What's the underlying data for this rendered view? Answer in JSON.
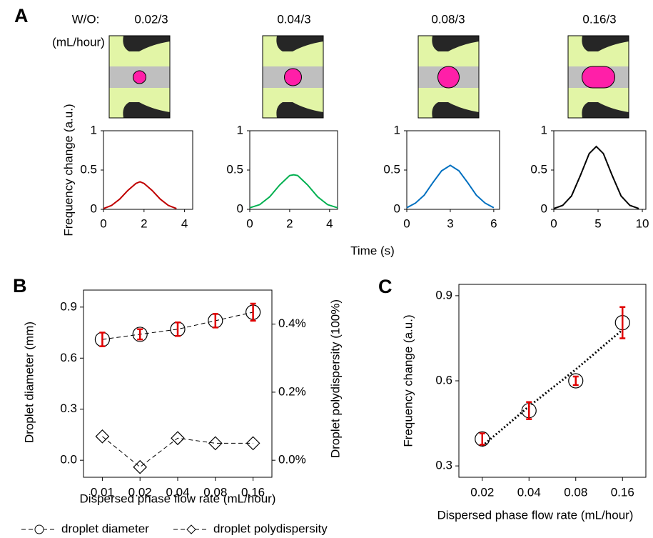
{
  "figure": {
    "panels": [
      "A",
      "B",
      "C"
    ],
    "panel_a": {
      "flow_label": "W/O:",
      "flow_unit": "(mL/hour)",
      "y_label": "Frequency change (a.u.)",
      "x_label": "Time (s)"
    }
  },
  "chart_data": [
    {
      "type": "line",
      "title": "0.02/3",
      "x": [
        0,
        0.4,
        0.8,
        1.2,
        1.6,
        1.8,
        2.0,
        2.4,
        2.8,
        3.2,
        3.6
      ],
      "series": [
        {
          "color": "#c00000",
          "values": [
            0.01,
            0.05,
            0.13,
            0.24,
            0.33,
            0.35,
            0.33,
            0.24,
            0.13,
            0.05,
            0.01
          ]
        }
      ],
      "xlim": [
        0,
        4.4
      ],
      "xticks": [
        0,
        2,
        4
      ],
      "ylim": [
        0,
        1
      ],
      "yticks": [
        0,
        0.5,
        1
      ]
    },
    {
      "type": "line",
      "title": "0.04/3",
      "x": [
        0,
        0.5,
        1.0,
        1.5,
        2.0,
        2.2,
        2.4,
        2.9,
        3.4,
        3.9,
        4.4
      ],
      "series": [
        {
          "color": "#00b050",
          "values": [
            0.02,
            0.06,
            0.16,
            0.31,
            0.43,
            0.44,
            0.43,
            0.31,
            0.16,
            0.06,
            0.02
          ]
        }
      ],
      "xlim": [
        0,
        4.4
      ],
      "xticks": [
        0,
        2,
        4
      ],
      "ylim": [
        0,
        1
      ],
      "yticks": [
        0,
        0.5,
        1
      ]
    },
    {
      "type": "line",
      "title": "0.08/3",
      "x": [
        0,
        0.6,
        1.2,
        1.8,
        2.4,
        3.0,
        3.6,
        4.2,
        4.8,
        5.4,
        6.0
      ],
      "series": [
        {
          "color": "#0070c0",
          "values": [
            0.02,
            0.08,
            0.18,
            0.34,
            0.49,
            0.56,
            0.49,
            0.34,
            0.18,
            0.08,
            0.02
          ]
        }
      ],
      "xlim": [
        0,
        6.4
      ],
      "xticks": [
        0,
        3,
        6
      ],
      "ylim": [
        0,
        1
      ],
      "yticks": [
        0,
        0.5,
        1
      ]
    },
    {
      "type": "line",
      "title": "0.16/3",
      "x": [
        0,
        1,
        2,
        3,
        4,
        4.8,
        5.6,
        6.6,
        7.6,
        8.6,
        9.6
      ],
      "series": [
        {
          "color": "#000000",
          "values": [
            0.01,
            0.05,
            0.17,
            0.43,
            0.71,
            0.8,
            0.71,
            0.43,
            0.17,
            0.05,
            0.01
          ]
        }
      ],
      "xlim": [
        0,
        10.4
      ],
      "xticks": [
        0,
        5,
        10
      ],
      "ylim": [
        0,
        1
      ],
      "yticks": [
        0,
        0.5,
        1
      ]
    },
    {
      "type": "dual-line",
      "x_label": "Dispersed phase flow rate (mL/hour)",
      "y_label": "Droplet diameter (mm)",
      "y2_label": "Droplet polydispersity (100%)",
      "categories": [
        "0.01",
        "0.02",
        "0.04",
        "0.08",
        "0.16"
      ],
      "series": [
        {
          "name": "droplet diameter",
          "color": "#000000",
          "marker": "circle",
          "error_color": "#e00000",
          "values": [
            0.71,
            0.74,
            0.77,
            0.82,
            0.87
          ],
          "errors": [
            0.04,
            0.03,
            0.04,
            0.04,
            0.05
          ]
        },
        {
          "name": "droplet polydispersity",
          "color": "#000000",
          "marker": "diamond",
          "axis": "y2",
          "values": [
            0.07,
            -0.02,
            0.065,
            0.05,
            0.05
          ]
        }
      ],
      "ylim": [
        -0.1,
        1.0
      ],
      "yticks": [
        {
          "value": 0,
          "label": "0.0"
        },
        0.3,
        0.6,
        0.9
      ],
      "y2lim": [
        -0.05,
        0.5
      ],
      "y2ticks": [
        {
          "value": 0,
          "label": "0.0%"
        },
        {
          "value": 0.2,
          "label": "0.2%"
        },
        {
          "value": 0.4,
          "label": "0.4%"
        }
      ],
      "legend": "bottom"
    },
    {
      "type": "errorbar",
      "x_label": "Dispersed phase flow rate (mL/hour)",
      "y_label": "Frequency change (a.u.)",
      "categories": [
        "0.02",
        "0.04",
        "0.08",
        "0.16"
      ],
      "values": [
        0.395,
        0.495,
        0.6,
        0.805
      ],
      "errors": [
        0.02,
        0.03,
        0.015,
        0.055
      ],
      "color": "#000000",
      "error_color": "#e00000",
      "trendline": [
        0.37,
        0.51,
        0.64,
        0.78
      ],
      "ylim": [
        0.26,
        0.94
      ],
      "yticks": [
        0.3,
        0.6,
        0.9
      ]
    }
  ]
}
